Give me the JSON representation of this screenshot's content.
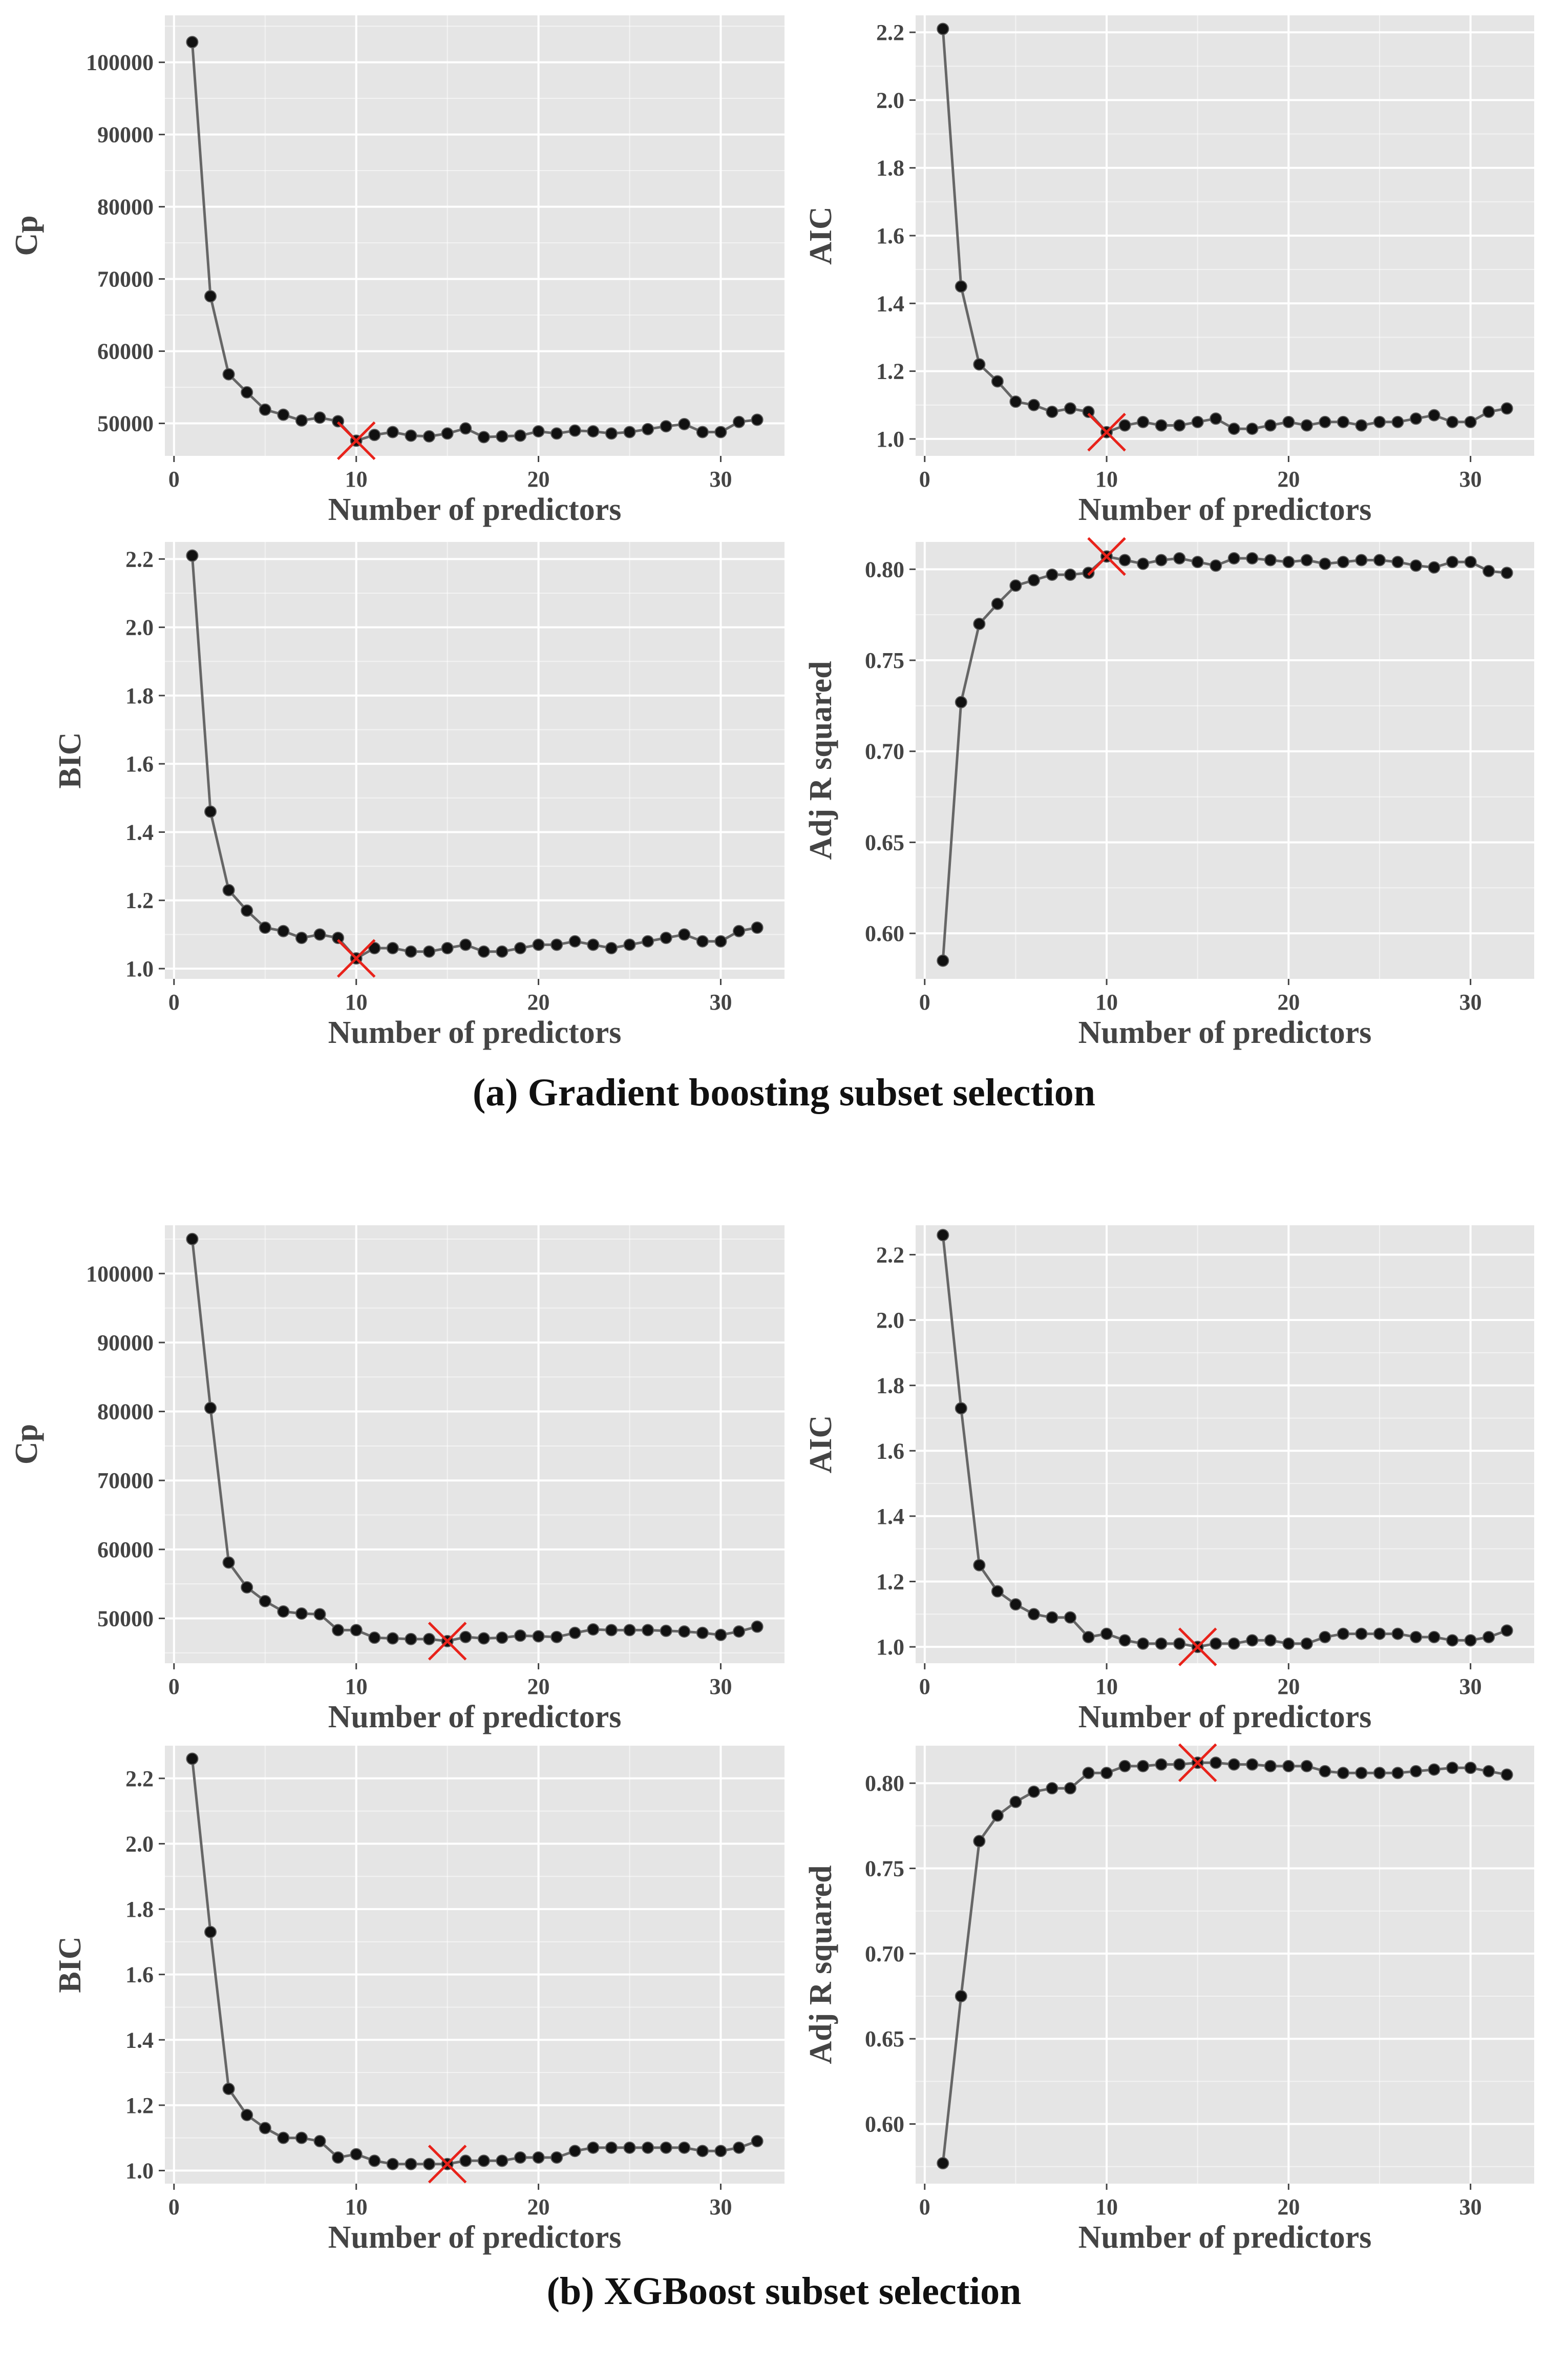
{
  "figure": {
    "caption_a": "(a) Gradient boosting subset selection",
    "caption_b": "(b) XGBoost subset selection"
  },
  "colors": {
    "panel_bg": "#e5e5e5",
    "grid": "#ffffff",
    "line": "#666666",
    "point": "#111111",
    "marker": "#e8221a"
  },
  "chart_data": [
    {
      "type": "line",
      "group": "a",
      "title": "",
      "xlabel": "Number of predictors",
      "ylabel": "Cp",
      "xlim": [
        -0.5,
        33.5
      ],
      "ylim": [
        45500,
        106500
      ],
      "xticks": [
        0,
        10,
        20,
        30
      ],
      "xtick_labels": [
        "0",
        "10",
        "20",
        "30"
      ],
      "yticks": [
        50000,
        60000,
        70000,
        80000,
        90000,
        100000
      ],
      "ytick_labels": [
        "50000",
        "60000",
        "70000",
        "80000",
        "90000",
        "100000"
      ],
      "x": [
        1,
        2,
        3,
        4,
        5,
        6,
        7,
        8,
        9,
        10,
        11,
        12,
        13,
        14,
        15,
        16,
        17,
        18,
        19,
        20,
        21,
        22,
        23,
        24,
        25,
        26,
        27,
        28,
        29,
        30,
        31,
        32
      ],
      "y": [
        102800,
        67600,
        56800,
        54300,
        51900,
        51200,
        50400,
        50800,
        50300,
        47600,
        48400,
        48800,
        48300,
        48200,
        48600,
        49300,
        48100,
        48200,
        48300,
        48900,
        48600,
        49000,
        48900,
        48600,
        48800,
        49200,
        49600,
        49900,
        48800,
        48800,
        50200,
        50500
      ],
      "highlight": {
        "x": 10,
        "y": 47600,
        "label": "minimum"
      }
    },
    {
      "type": "line",
      "group": "a",
      "title": "",
      "xlabel": "Number of predictors",
      "ylabel": "AIC",
      "xlim": [
        -0.5,
        33.5
      ],
      "ylim": [
        0.95,
        2.25
      ],
      "xticks": [
        0,
        10,
        20,
        30
      ],
      "xtick_labels": [
        "0",
        "10",
        "20",
        "30"
      ],
      "yticks": [
        1.0,
        1.2,
        1.4,
        1.6,
        1.8,
        2.0,
        2.2
      ],
      "ytick_labels": [
        "1.0",
        "1.2",
        "1.4",
        "1.6",
        "1.8",
        "2.0",
        "2.2"
      ],
      "x": [
        1,
        2,
        3,
        4,
        5,
        6,
        7,
        8,
        9,
        10,
        11,
        12,
        13,
        14,
        15,
        16,
        17,
        18,
        19,
        20,
        21,
        22,
        23,
        24,
        25,
        26,
        27,
        28,
        29,
        30,
        31,
        32
      ],
      "y": [
        2.21,
        1.45,
        1.22,
        1.17,
        1.11,
        1.1,
        1.08,
        1.09,
        1.08,
        1.02,
        1.04,
        1.05,
        1.04,
        1.04,
        1.05,
        1.06,
        1.03,
        1.03,
        1.04,
        1.05,
        1.04,
        1.05,
        1.05,
        1.04,
        1.05,
        1.05,
        1.06,
        1.07,
        1.05,
        1.05,
        1.08,
        1.09
      ],
      "highlight": {
        "x": 10,
        "y": 1.02,
        "label": "minimum"
      }
    },
    {
      "type": "line",
      "group": "a",
      "title": "",
      "xlabel": "Number of predictors",
      "ylabel": "BIC",
      "xlim": [
        -0.5,
        33.5
      ],
      "ylim": [
        0.97,
        2.25
      ],
      "xticks": [
        0,
        10,
        20,
        30
      ],
      "xtick_labels": [
        "0",
        "10",
        "20",
        "30"
      ],
      "yticks": [
        1.0,
        1.2,
        1.4,
        1.6,
        1.8,
        2.0,
        2.2
      ],
      "ytick_labels": [
        "1.0",
        "1.2",
        "1.4",
        "1.6",
        "1.8",
        "2.0",
        "2.2"
      ],
      "x": [
        1,
        2,
        3,
        4,
        5,
        6,
        7,
        8,
        9,
        10,
        11,
        12,
        13,
        14,
        15,
        16,
        17,
        18,
        19,
        20,
        21,
        22,
        23,
        24,
        25,
        26,
        27,
        28,
        29,
        30,
        31,
        32
      ],
      "y": [
        2.21,
        1.46,
        1.23,
        1.17,
        1.12,
        1.11,
        1.09,
        1.1,
        1.09,
        1.03,
        1.06,
        1.06,
        1.05,
        1.05,
        1.06,
        1.07,
        1.05,
        1.05,
        1.06,
        1.07,
        1.07,
        1.08,
        1.07,
        1.06,
        1.07,
        1.08,
        1.09,
        1.1,
        1.08,
        1.08,
        1.11,
        1.12
      ],
      "highlight": {
        "x": 10,
        "y": 1.03,
        "label": "minimum"
      }
    },
    {
      "type": "line",
      "group": "a",
      "title": "",
      "xlabel": "Number of predictors",
      "ylabel": "Adj R squared",
      "xlim": [
        -0.5,
        33.5
      ],
      "ylim": [
        0.575,
        0.815
      ],
      "xticks": [
        0,
        10,
        20,
        30
      ],
      "xtick_labels": [
        "0",
        "10",
        "20",
        "30"
      ],
      "yticks": [
        0.6,
        0.65,
        0.7,
        0.75,
        0.8
      ],
      "ytick_labels": [
        "0.60",
        "0.65",
        "0.70",
        "0.75",
        "0.80"
      ],
      "x": [
        1,
        2,
        3,
        4,
        5,
        6,
        7,
        8,
        9,
        10,
        11,
        12,
        13,
        14,
        15,
        16,
        17,
        18,
        19,
        20,
        21,
        22,
        23,
        24,
        25,
        26,
        27,
        28,
        29,
        30,
        31,
        32
      ],
      "y": [
        0.585,
        0.727,
        0.77,
        0.781,
        0.791,
        0.794,
        0.797,
        0.797,
        0.798,
        0.807,
        0.805,
        0.803,
        0.805,
        0.806,
        0.804,
        0.802,
        0.806,
        0.806,
        0.805,
        0.804,
        0.805,
        0.803,
        0.804,
        0.805,
        0.805,
        0.804,
        0.802,
        0.801,
        0.804,
        0.804,
        0.799,
        0.798
      ],
      "highlight": {
        "x": 10,
        "y": 0.807,
        "label": "maximum"
      }
    },
    {
      "type": "line",
      "group": "b",
      "title": "",
      "xlabel": "Number of predictors",
      "ylabel": "Cp",
      "xlim": [
        -0.5,
        33.5
      ],
      "ylim": [
        43500,
        107000
      ],
      "xticks": [
        0,
        10,
        20,
        30
      ],
      "xtick_labels": [
        "0",
        "10",
        "20",
        "30"
      ],
      "yticks": [
        50000,
        60000,
        70000,
        80000,
        90000,
        100000
      ],
      "ytick_labels": [
        "50000",
        "60000",
        "70000",
        "80000",
        "90000",
        "100000"
      ],
      "x": [
        1,
        2,
        3,
        4,
        5,
        6,
        7,
        8,
        9,
        10,
        11,
        12,
        13,
        14,
        15,
        16,
        17,
        18,
        19,
        20,
        21,
        22,
        23,
        24,
        25,
        26,
        27,
        28,
        29,
        30,
        31,
        32
      ],
      "y": [
        105000,
        80500,
        58100,
        54500,
        52500,
        51000,
        50700,
        50600,
        48300,
        48300,
        47200,
        47100,
        47000,
        47000,
        46700,
        47300,
        47100,
        47200,
        47500,
        47400,
        47300,
        47900,
        48400,
        48300,
        48300,
        48300,
        48200,
        48100,
        47900,
        47600,
        48100,
        48800
      ],
      "highlight": {
        "x": 15,
        "y": 46700,
        "label": "minimum"
      }
    },
    {
      "type": "line",
      "group": "b",
      "title": "",
      "xlabel": "Number of predictors",
      "ylabel": "AIC",
      "xlim": [
        -0.5,
        33.5
      ],
      "ylim": [
        0.95,
        2.29
      ],
      "xticks": [
        0,
        10,
        20,
        30
      ],
      "xtick_labels": [
        "0",
        "10",
        "20",
        "30"
      ],
      "yticks": [
        1.0,
        1.2,
        1.4,
        1.6,
        1.8,
        2.0,
        2.2
      ],
      "ytick_labels": [
        "1.0",
        "1.2",
        "1.4",
        "1.6",
        "1.8",
        "2.0",
        "2.2"
      ],
      "x": [
        1,
        2,
        3,
        4,
        5,
        6,
        7,
        8,
        9,
        10,
        11,
        12,
        13,
        14,
        15,
        16,
        17,
        18,
        19,
        20,
        21,
        22,
        23,
        24,
        25,
        26,
        27,
        28,
        29,
        30,
        31,
        32
      ],
      "y": [
        2.26,
        1.73,
        1.25,
        1.17,
        1.13,
        1.1,
        1.09,
        1.09,
        1.03,
        1.04,
        1.02,
        1.01,
        1.01,
        1.01,
        1.0,
        1.01,
        1.01,
        1.02,
        1.02,
        1.01,
        1.01,
        1.03,
        1.04,
        1.04,
        1.04,
        1.04,
        1.03,
        1.03,
        1.02,
        1.02,
        1.03,
        1.05
      ],
      "highlight": {
        "x": 15,
        "y": 1.0,
        "label": "minimum"
      }
    },
    {
      "type": "line",
      "group": "b",
      "title": "",
      "xlabel": "Number of predictors",
      "ylabel": "BIC",
      "xlim": [
        -0.5,
        33.5
      ],
      "ylim": [
        0.96,
        2.3
      ],
      "xticks": [
        0,
        10,
        20,
        30
      ],
      "xtick_labels": [
        "0",
        "10",
        "20",
        "30"
      ],
      "yticks": [
        1.0,
        1.2,
        1.4,
        1.6,
        1.8,
        2.0,
        2.2
      ],
      "ytick_labels": [
        "1.0",
        "1.2",
        "1.4",
        "1.6",
        "1.8",
        "2.0",
        "2.2"
      ],
      "x": [
        1,
        2,
        3,
        4,
        5,
        6,
        7,
        8,
        9,
        10,
        11,
        12,
        13,
        14,
        15,
        16,
        17,
        18,
        19,
        20,
        21,
        22,
        23,
        24,
        25,
        26,
        27,
        28,
        29,
        30,
        31,
        32
      ],
      "y": [
        2.26,
        1.73,
        1.25,
        1.17,
        1.13,
        1.1,
        1.1,
        1.09,
        1.04,
        1.05,
        1.03,
        1.02,
        1.02,
        1.02,
        1.02,
        1.03,
        1.03,
        1.03,
        1.04,
        1.04,
        1.04,
        1.06,
        1.07,
        1.07,
        1.07,
        1.07,
        1.07,
        1.07,
        1.06,
        1.06,
        1.07,
        1.09
      ],
      "highlight": {
        "x": 15,
        "y": 1.02,
        "label": "minimum"
      }
    },
    {
      "type": "line",
      "group": "b",
      "title": "",
      "xlabel": "Number of predictors",
      "ylabel": "Adj R squared",
      "xlim": [
        -0.5,
        33.5
      ],
      "ylim": [
        0.565,
        0.822
      ],
      "xticks": [
        0,
        10,
        20,
        30
      ],
      "xtick_labels": [
        "0",
        "10",
        "20",
        "30"
      ],
      "yticks": [
        0.6,
        0.65,
        0.7,
        0.75,
        0.8
      ],
      "ytick_labels": [
        "0.60",
        "0.65",
        "0.70",
        "0.75",
        "0.80"
      ],
      "x": [
        1,
        2,
        3,
        4,
        5,
        6,
        7,
        8,
        9,
        10,
        11,
        12,
        13,
        14,
        15,
        16,
        17,
        18,
        19,
        20,
        21,
        22,
        23,
        24,
        25,
        26,
        27,
        28,
        29,
        30,
        31,
        32
      ],
      "y": [
        0.577,
        0.675,
        0.766,
        0.781,
        0.789,
        0.795,
        0.797,
        0.797,
        0.806,
        0.806,
        0.81,
        0.81,
        0.811,
        0.811,
        0.812,
        0.812,
        0.811,
        0.811,
        0.81,
        0.81,
        0.81,
        0.807,
        0.806,
        0.806,
        0.806,
        0.806,
        0.807,
        0.808,
        0.809,
        0.809,
        0.807,
        0.805
      ],
      "highlight": {
        "x": 15,
        "y": 0.812,
        "label": "maximum"
      }
    }
  ]
}
